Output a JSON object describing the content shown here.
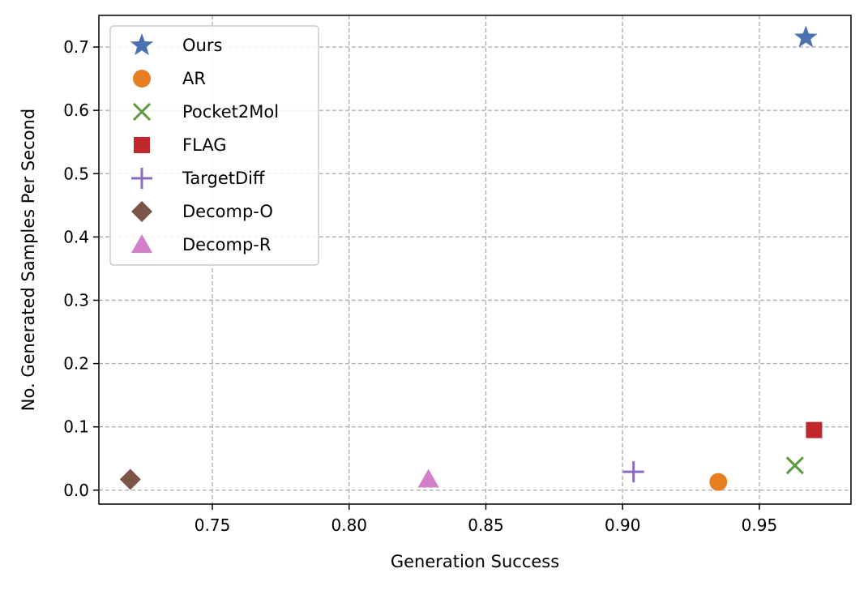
{
  "chart_data": {
    "type": "scatter",
    "title": "",
    "xlabel": "Generation Success",
    "ylabel": "No. Generated Samples Per Second",
    "xlim": [
      0.7085,
      0.9835
    ],
    "ylim": [
      -0.022,
      0.75
    ],
    "xticks": [
      0.75,
      0.8,
      0.85,
      0.9,
      0.95
    ],
    "xtick_labels": [
      "0.75",
      "0.80",
      "0.85",
      "0.90",
      "0.95"
    ],
    "yticks": [
      0.0,
      0.1,
      0.2,
      0.3,
      0.4,
      0.5,
      0.6,
      0.7
    ],
    "ytick_labels": [
      "0.0",
      "0.1",
      "0.2",
      "0.3",
      "0.4",
      "0.5",
      "0.6",
      "0.7"
    ],
    "grid": true,
    "grid_style": "dashed",
    "legend_position": "top-left",
    "series": [
      {
        "name": "Ours",
        "marker": "star",
        "color": "#4a72b0",
        "x": 0.967,
        "y": 0.715
      },
      {
        "name": "AR",
        "marker": "circle",
        "color": "#e67e22",
        "x": 0.935,
        "y": 0.013
      },
      {
        "name": "Pocket2Mol",
        "marker": "x",
        "color": "#5a9a3c",
        "x": 0.963,
        "y": 0.039
      },
      {
        "name": "FLAG",
        "marker": "square",
        "color": "#c0282d",
        "x": 0.97,
        "y": 0.095
      },
      {
        "name": "TargetDiff",
        "marker": "plus",
        "color": "#8a6bbd",
        "x": 0.904,
        "y": 0.029
      },
      {
        "name": "Decomp-O",
        "marker": "diamond",
        "color": "#7d5548",
        "x": 0.72,
        "y": 0.017
      },
      {
        "name": "Decomp-R",
        "marker": "triangle",
        "color": "#d17fc8",
        "x": 0.829,
        "y": 0.017
      }
    ]
  }
}
